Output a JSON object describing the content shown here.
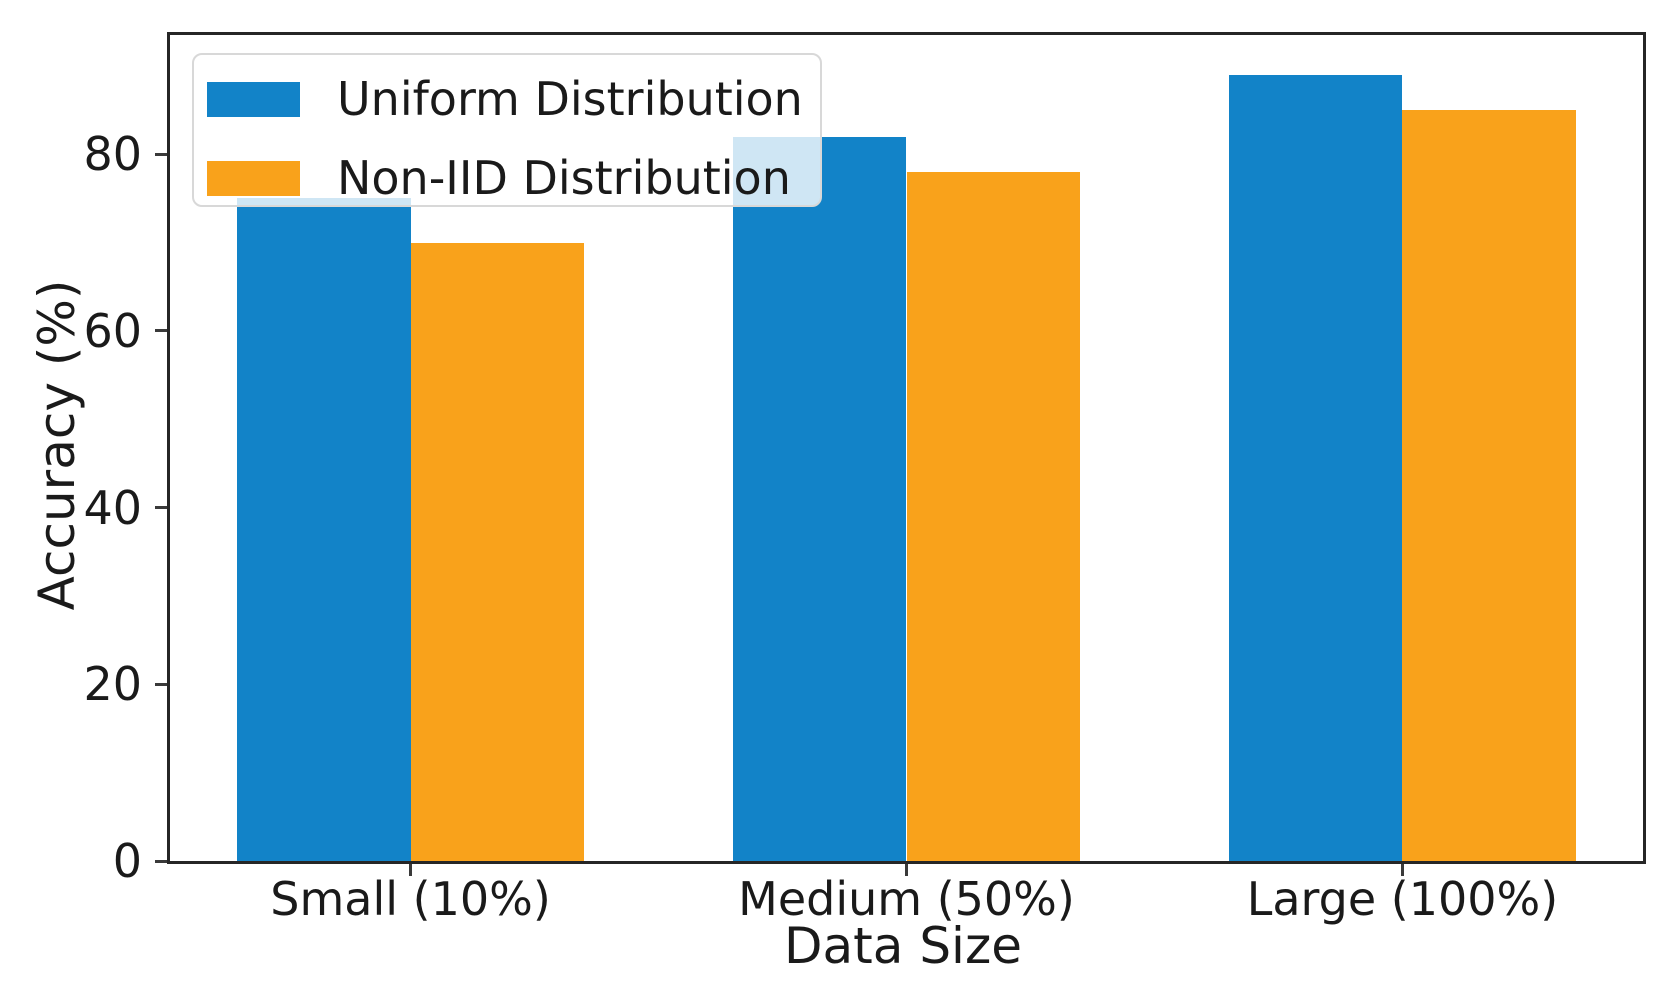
{
  "chart_data": {
    "type": "bar",
    "title": "",
    "xlabel": "Data Size",
    "ylabel": "Accuracy (%)",
    "categories": [
      "Small (10%)",
      "Medium (50%)",
      "Large (100%)"
    ],
    "series": [
      {
        "name": "Uniform Distribution",
        "color": "#1283c8",
        "values": [
          75,
          82,
          89
        ]
      },
      {
        "name": "Non-IID Distribution",
        "color": "#f9a21b",
        "values": [
          70,
          78,
          85
        ]
      }
    ],
    "yticks": [
      0,
      20,
      40,
      60,
      80
    ],
    "ylim": [
      0,
      93.5
    ],
    "xlim": [
      -0.485,
      2.485
    ],
    "bar_width_fraction": 0.35,
    "legend_position": "upper left",
    "grid": false
  },
  "colors": {
    "uniform_blue": "#1283c8",
    "non_iid_orange": "#f9a21b",
    "spine": "#262626",
    "text": "#1a1a1a",
    "legend_border": "#d8d8d8"
  }
}
